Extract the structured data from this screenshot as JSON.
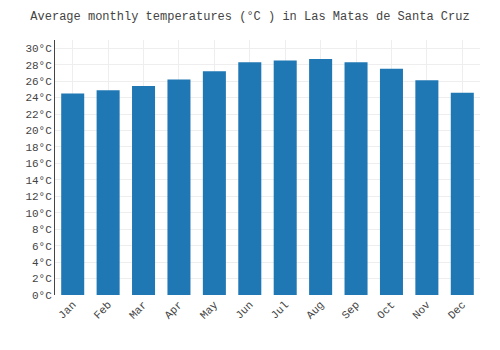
{
  "chart_data": {
    "type": "bar",
    "title": "Average monthly temperatures (°C ) in Las Matas de Santa Cruz",
    "categories": [
      "Jan",
      "Feb",
      "Mar",
      "Apr",
      "May",
      "Jun",
      "Jul",
      "Aug",
      "Sep",
      "Oct",
      "Nov",
      "Dec"
    ],
    "values": [
      24.5,
      24.9,
      25.4,
      26.2,
      27.2,
      28.3,
      28.5,
      28.7,
      28.3,
      27.5,
      26.1,
      24.6
    ],
    "ylim": [
      0,
      31
    ],
    "yticks": [
      {
        "value": 0,
        "label": "0°C"
      },
      {
        "value": 2,
        "label": "2°C"
      },
      {
        "value": 4,
        "label": "4°C"
      },
      {
        "value": 6,
        "label": "6°C"
      },
      {
        "value": 8,
        "label": "8°C"
      },
      {
        "value": 10,
        "label": "10°C"
      },
      {
        "value": 12,
        "label": "12°C"
      },
      {
        "value": 14,
        "label": "14°C"
      },
      {
        "value": 16,
        "label": "16°C"
      },
      {
        "value": 18,
        "label": "18°C"
      },
      {
        "value": 20,
        "label": "20°C"
      },
      {
        "value": 22,
        "label": "22°C"
      },
      {
        "value": 24,
        "label": "24°C"
      },
      {
        "value": 26,
        "label": "26°C"
      },
      {
        "value": 28,
        "label": "28°C"
      },
      {
        "value": 30,
        "label": "30°C"
      }
    ],
    "grid": true
  }
}
